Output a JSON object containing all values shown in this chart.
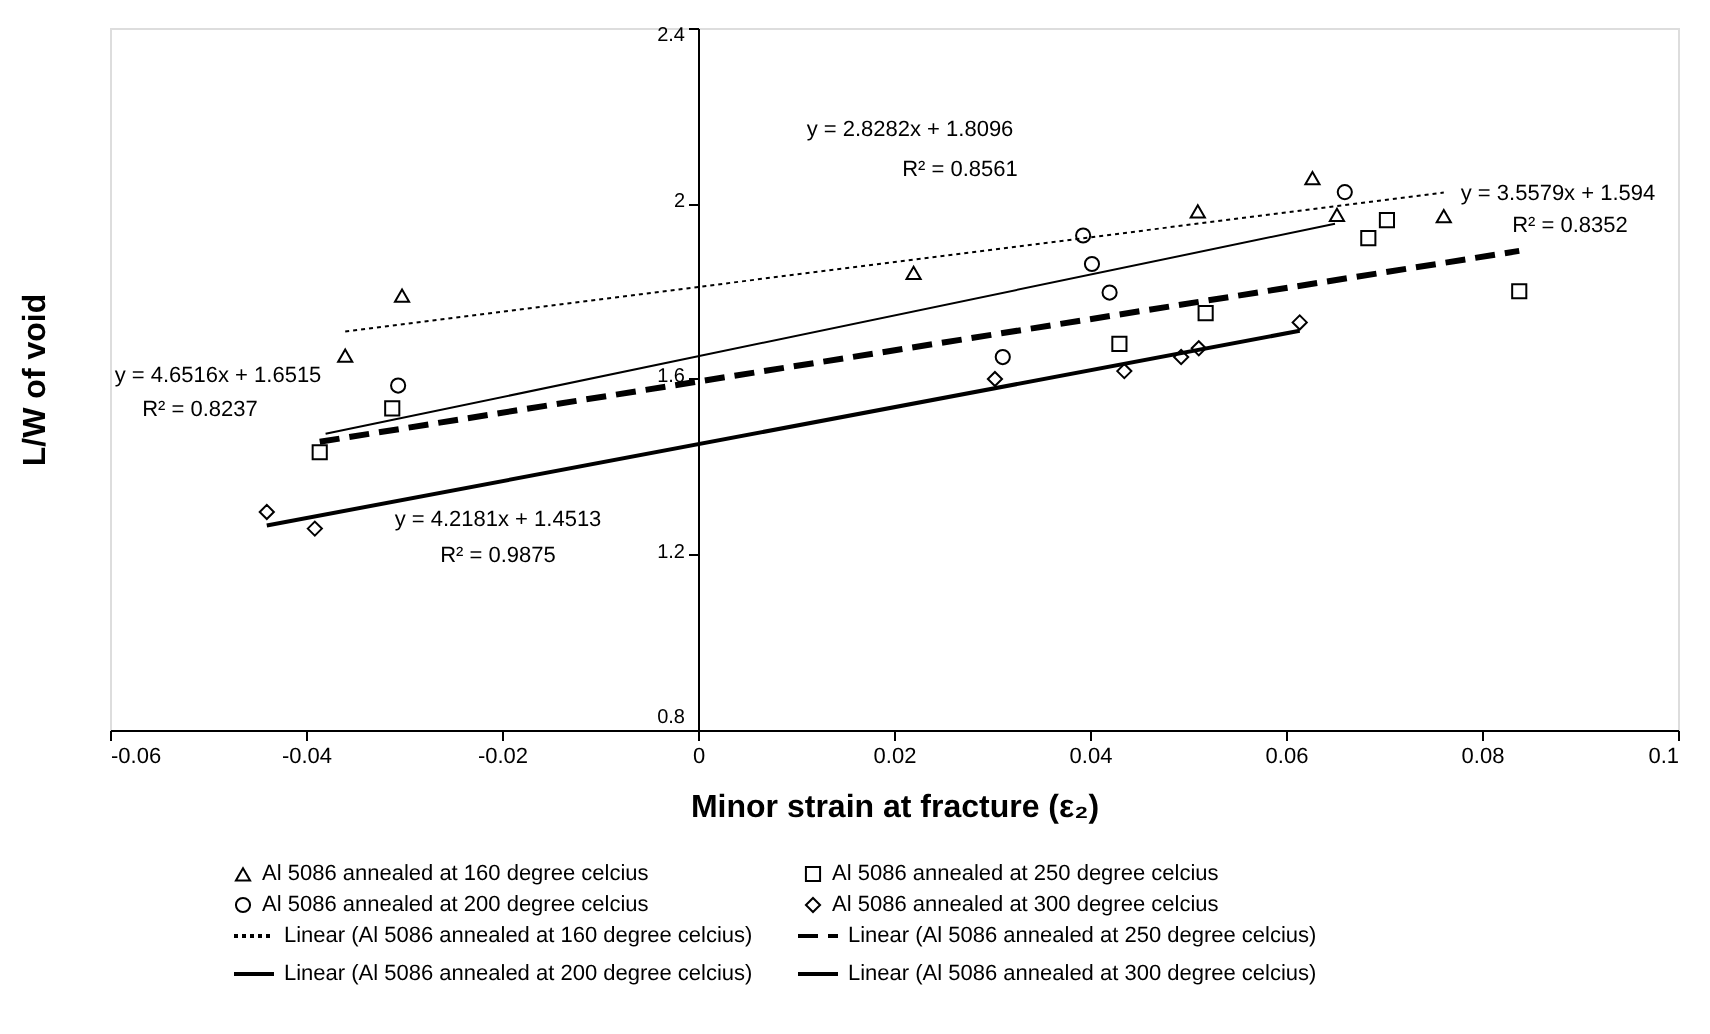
{
  "chart_data": {
    "type": "scatter",
    "xlabel": "Minor strain at fracture (ε₂)",
    "ylabel": "L/W of void",
    "xlim": [
      -0.06,
      0.1
    ],
    "ylim": [
      0.8,
      2.4
    ],
    "xticks": [
      -0.06,
      -0.04,
      -0.02,
      0,
      0.02,
      0.04,
      0.06,
      0.08,
      0.1
    ],
    "yticks": [
      0.8,
      1.2,
      1.6,
      2,
      2.4
    ],
    "legend": "bottom",
    "series": [
      {
        "name": "Al 5086 annealed at 160 degree celcius",
        "marker": "triangle",
        "color": "#000000",
        "x": [
          -0.0302,
          -0.036,
          0.022,
          0.051,
          0.0627,
          0.0652,
          0.0761
        ],
        "values": [
          1.79,
          1.653,
          1.842,
          1.982,
          2.058,
          1.974,
          1.971
        ]
      },
      {
        "name": "Al 5086 annealed at 200 degree celcius",
        "marker": "circle",
        "color": "#000000",
        "x": [
          -0.0306,
          0.0311,
          0.0393,
          0.0402,
          0.042,
          0.066
        ],
        "values": [
          1.585,
          1.65,
          1.927,
          1.862,
          1.797,
          2.026
        ]
      },
      {
        "name": "Al 5086 annealed at 250 degree celcius",
        "marker": "square",
        "color": "#000000",
        "x": [
          -0.0386,
          -0.0312,
          0.043,
          0.0518,
          0.0684,
          0.0703,
          0.0838
        ],
        "values": [
          1.433,
          1.533,
          1.68,
          1.75,
          1.921,
          1.962,
          1.8
        ]
      },
      {
        "name": "Al 5086 annealed at 300 degree celcius",
        "marker": "diamond",
        "color": "#000000",
        "x": [
          -0.044,
          -0.0391,
          0.0303,
          0.0435,
          0.0493,
          0.0511,
          0.0614
        ],
        "values": [
          1.297,
          1.259,
          1.6,
          1.618,
          1.65,
          1.67,
          1.729
        ]
      },
      {
        "name": "Linear (Al 5086 annealed at 160 degree celcius)",
        "type": "line",
        "marker": "none",
        "line_style": "dotted",
        "color": "#000000",
        "x": [
          -0.036,
          0.0761
        ],
        "values": [
          1.708,
          2.025
        ]
      },
      {
        "name": "Linear (Al 5086 annealed at 200 degree celcius)",
        "type": "line",
        "marker": "none",
        "line_style": "solid",
        "color": "#000000",
        "x": [
          -0.038,
          0.065
        ],
        "values": [
          1.475,
          1.954
        ]
      },
      {
        "name": "Linear (Al 5086 annealed at 250 degree celcius)",
        "type": "line",
        "marker": "none",
        "line_style": "dashed",
        "color": "#000000",
        "x": [
          -0.0386,
          0.0838
        ],
        "values": [
          1.457,
          1.892
        ]
      },
      {
        "name": "Linear (Al 5086 annealed at 300 degree celcius)",
        "type": "line",
        "marker": "none",
        "line_style": "solid",
        "color": "#000000",
        "x": [
          -0.044,
          0.0614
        ],
        "values": [
          1.266,
          1.71
        ]
      }
    ],
    "annotations": [
      "y = 2.8282x + 1.8096",
      "R² = 0.8561",
      "y = 3.5579x + 1.594",
      "R² = 0.8352",
      "y = 4.6516x + 1.6515",
      "R² = 0.8237",
      "y = 4.2181x + 1.4513",
      "R² = 0.9875"
    ]
  }
}
